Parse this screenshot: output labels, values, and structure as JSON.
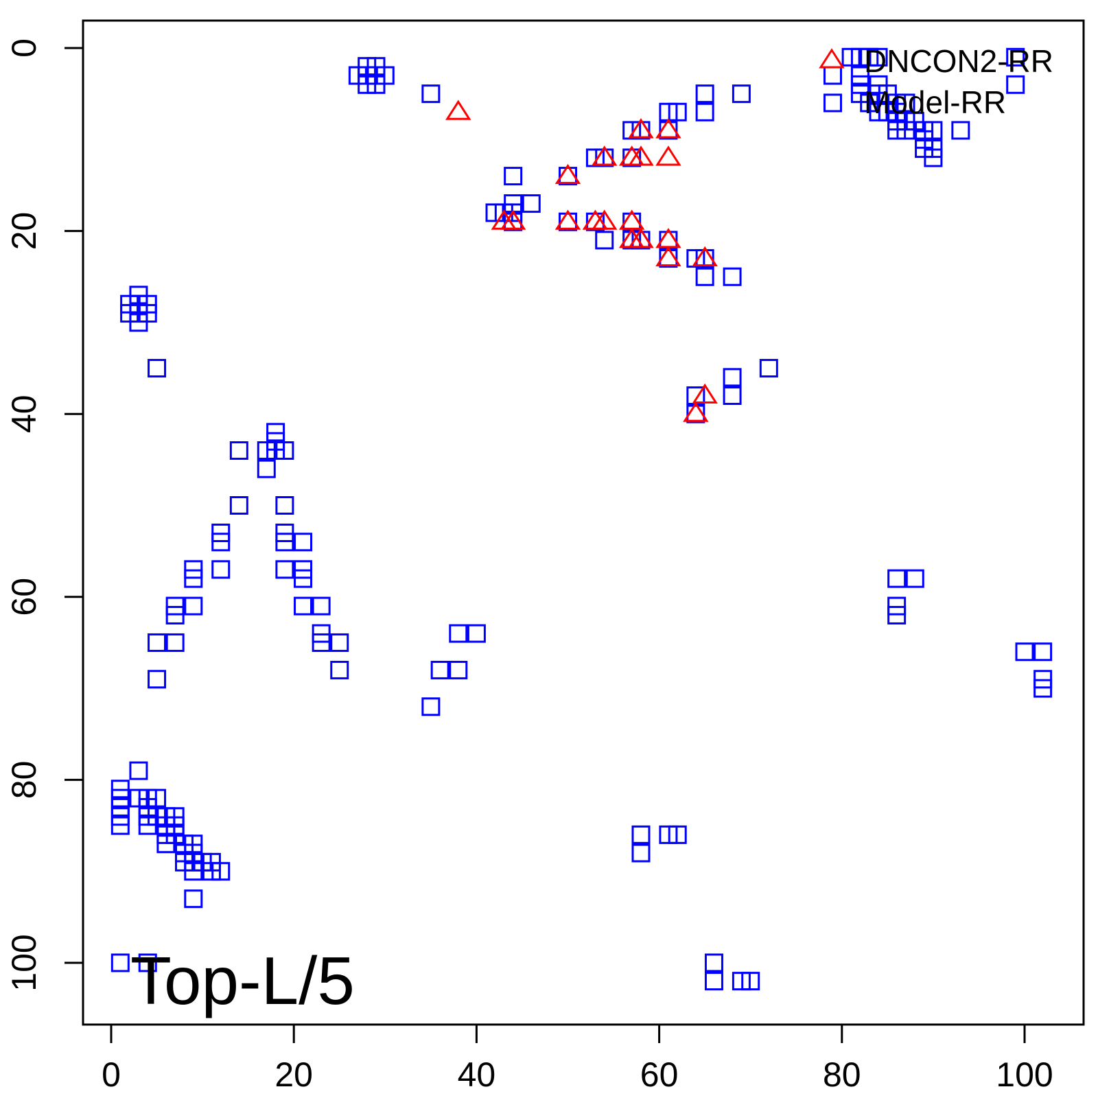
{
  "chart_data": {
    "type": "scatter",
    "title": "",
    "xlabel": "",
    "ylabel": "",
    "xlim": [
      -3,
      104
    ],
    "ylim": [
      -3,
      107
    ],
    "y_axis_reversed": true,
    "x_ticks": [
      0,
      20,
      40,
      60,
      80,
      100
    ],
    "y_ticks": [
      0,
      20,
      40,
      60,
      80,
      100
    ],
    "x_tick_labels": [
      "0",
      "20",
      "40",
      "60",
      "80",
      "100"
    ],
    "y_tick_labels": [
      "0",
      "20",
      "40",
      "60",
      "80",
      "100"
    ],
    "grid": false,
    "legend": {
      "position": "top-right",
      "entries": [
        {
          "label": "DNCON2-RR",
          "marker": "triangle",
          "color": "#ff0000"
        },
        {
          "label": "Model-RR",
          "marker": "square",
          "color": "#0000ff"
        }
      ]
    },
    "annotation": "Top-L/5",
    "series": [
      {
        "name": "DNCON2-RR",
        "marker": "triangle",
        "color": "#ff0000",
        "points": [
          [
            38,
            7
          ],
          [
            58,
            9
          ],
          [
            61,
            9
          ],
          [
            54,
            12
          ],
          [
            57,
            12
          ],
          [
            58,
            12
          ],
          [
            61,
            12
          ],
          [
            50,
            14
          ],
          [
            43,
            19
          ],
          [
            44,
            19
          ],
          [
            50,
            19
          ],
          [
            53,
            19
          ],
          [
            54,
            19
          ],
          [
            57,
            19
          ],
          [
            57,
            21
          ],
          [
            58,
            21
          ],
          [
            61,
            21
          ],
          [
            61,
            23
          ],
          [
            65,
            23
          ],
          [
            65,
            38
          ],
          [
            64,
            40
          ]
        ]
      },
      {
        "name": "Model-RR",
        "marker": "square",
        "color": "#0000ff",
        "points": [
          [
            28,
            2
          ],
          [
            29,
            2
          ],
          [
            27,
            3
          ],
          [
            28,
            3
          ],
          [
            29,
            3
          ],
          [
            30,
            3
          ],
          [
            28,
            4
          ],
          [
            29,
            4
          ],
          [
            35,
            5
          ],
          [
            65,
            5
          ],
          [
            69,
            5
          ],
          [
            61,
            7
          ],
          [
            62,
            7
          ],
          [
            65,
            7
          ],
          [
            57,
            9
          ],
          [
            58,
            9
          ],
          [
            61,
            9
          ],
          [
            53,
            12
          ],
          [
            54,
            12
          ],
          [
            57,
            12
          ],
          [
            44,
            14
          ],
          [
            50,
            14
          ],
          [
            44,
            17
          ],
          [
            46,
            17
          ],
          [
            42,
            18
          ],
          [
            43,
            18
          ],
          [
            44,
            18
          ],
          [
            44,
            19
          ],
          [
            50,
            19
          ],
          [
            53,
            19
          ],
          [
            57,
            19
          ],
          [
            54,
            21
          ],
          [
            57,
            21
          ],
          [
            58,
            21
          ],
          [
            61,
            21
          ],
          [
            61,
            23
          ],
          [
            64,
            23
          ],
          [
            65,
            23
          ],
          [
            65,
            25
          ],
          [
            68,
            25
          ],
          [
            3,
            27
          ],
          [
            2,
            28
          ],
          [
            3,
            28
          ],
          [
            4,
            28
          ],
          [
            2,
            29
          ],
          [
            3,
            29
          ],
          [
            4,
            29
          ],
          [
            3,
            30
          ],
          [
            5,
            35
          ],
          [
            72,
            35
          ],
          [
            68,
            36
          ],
          [
            64,
            38
          ],
          [
            68,
            38
          ],
          [
            64,
            40
          ],
          [
            18,
            42
          ],
          [
            18,
            43
          ],
          [
            14,
            44
          ],
          [
            17,
            44
          ],
          [
            18,
            44
          ],
          [
            19,
            44
          ],
          [
            17,
            46
          ],
          [
            14,
            50
          ],
          [
            19,
            50
          ],
          [
            12,
            53
          ],
          [
            19,
            53
          ],
          [
            12,
            54
          ],
          [
            19,
            54
          ],
          [
            21,
            54
          ],
          [
            12,
            57
          ],
          [
            19,
            57
          ],
          [
            21,
            57
          ],
          [
            9,
            57
          ],
          [
            9,
            58
          ],
          [
            21,
            58
          ],
          [
            86,
            58
          ],
          [
            88,
            58
          ],
          [
            7,
            61
          ],
          [
            9,
            61
          ],
          [
            21,
            61
          ],
          [
            23,
            61
          ],
          [
            86,
            61
          ],
          [
            7,
            62
          ],
          [
            86,
            62
          ],
          [
            23,
            64
          ],
          [
            38,
            64
          ],
          [
            40,
            64
          ],
          [
            5,
            65
          ],
          [
            7,
            65
          ],
          [
            23,
            65
          ],
          [
            25,
            65
          ],
          [
            100,
            66
          ],
          [
            102,
            66
          ],
          [
            25,
            68
          ],
          [
            36,
            68
          ],
          [
            38,
            68
          ],
          [
            5,
            69
          ],
          [
            102,
            69
          ],
          [
            102,
            70
          ],
          [
            35,
            72
          ],
          [
            3,
            79
          ],
          [
            1,
            81
          ],
          [
            1,
            82
          ],
          [
            3,
            82
          ],
          [
            4,
            82
          ],
          [
            5,
            82
          ],
          [
            1,
            83
          ],
          [
            4,
            83
          ],
          [
            1,
            84
          ],
          [
            4,
            84
          ],
          [
            5,
            84
          ],
          [
            6,
            84
          ],
          [
            7,
            84
          ],
          [
            1,
            85
          ],
          [
            4,
            85
          ],
          [
            6,
            85
          ],
          [
            7,
            85
          ],
          [
            6,
            86
          ],
          [
            7,
            86
          ],
          [
            58,
            86
          ],
          [
            61,
            86
          ],
          [
            62,
            86
          ],
          [
            6,
            87
          ],
          [
            8,
            87
          ],
          [
            9,
            87
          ],
          [
            8,
            88
          ],
          [
            9,
            88
          ],
          [
            58,
            88
          ],
          [
            8,
            89
          ],
          [
            9,
            89
          ],
          [
            10,
            89
          ],
          [
            11,
            89
          ],
          [
            9,
            90
          ],
          [
            11,
            90
          ],
          [
            12,
            90
          ],
          [
            9,
            93
          ],
          [
            1,
            100
          ],
          [
            4,
            100
          ],
          [
            66,
            100
          ],
          [
            66,
            102
          ],
          [
            69,
            102
          ],
          [
            70,
            102
          ],
          [
            81,
            1
          ],
          [
            82,
            1
          ],
          [
            83,
            1
          ],
          [
            84,
            1
          ],
          [
            99,
            1
          ],
          [
            79,
            3
          ],
          [
            82,
            3
          ],
          [
            82,
            4
          ],
          [
            84,
            4
          ],
          [
            99,
            4
          ],
          [
            82,
            5
          ],
          [
            84,
            5
          ],
          [
            85,
            5
          ],
          [
            83,
            6
          ],
          [
            86,
            6
          ],
          [
            87,
            6
          ],
          [
            79,
            6
          ],
          [
            84,
            7
          ],
          [
            85,
            7
          ],
          [
            86,
            7
          ],
          [
            86,
            8
          ],
          [
            87,
            8
          ],
          [
            88,
            8
          ],
          [
            86,
            9
          ],
          [
            87,
            9
          ],
          [
            89,
            9
          ],
          [
            90,
            9
          ],
          [
            93,
            9
          ],
          [
            89,
            10
          ],
          [
            89,
            11
          ],
          [
            90,
            11
          ],
          [
            90,
            12
          ]
        ]
      }
    ]
  }
}
